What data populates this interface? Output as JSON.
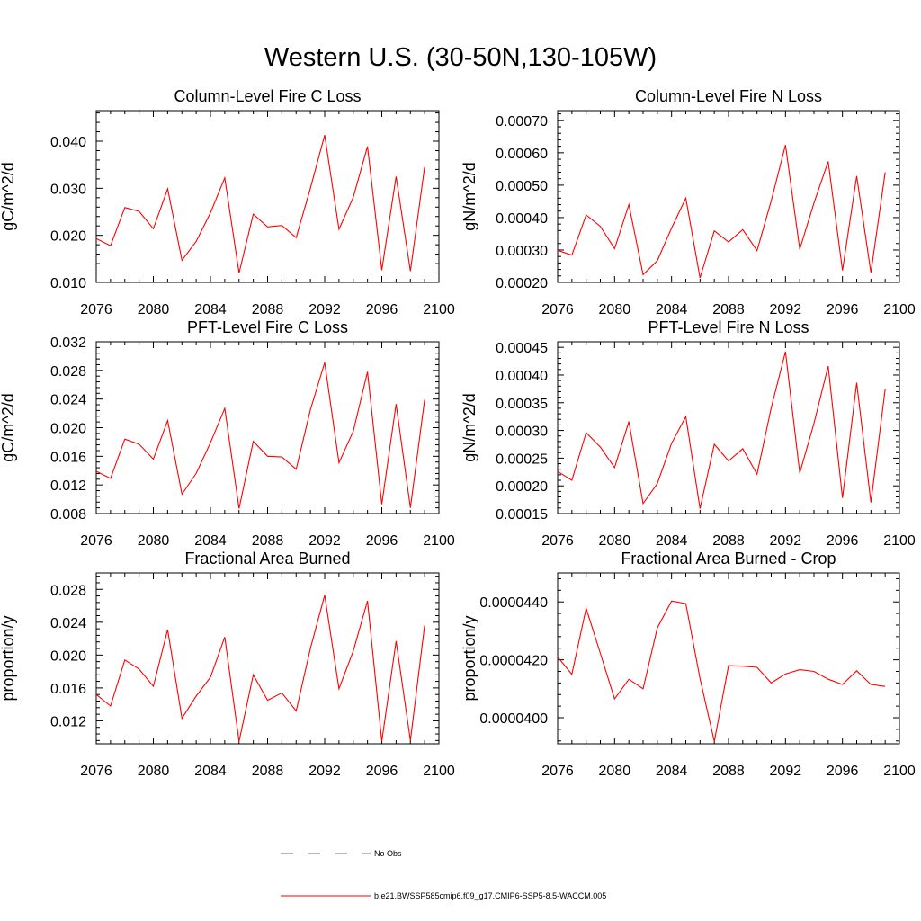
{
  "title": "Western U.S. (30-50N,130-105W)",
  "legend": [
    {
      "label": "No Obs",
      "color": "#6a6aa8",
      "style": "dashed"
    },
    {
      "label": "b.e21.BWSSP585cmip6.f09_g17.CMIP6-SSP5-8.5-WACCM.005",
      "color": "#ff0000",
      "style": "solid"
    }
  ],
  "chart_data": [
    {
      "type": "line",
      "title": "Column-Level Fire C Loss",
      "ylabel": "gC/m^2/d",
      "xlim": [
        2076,
        2100
      ],
      "ylim": [
        0.01,
        0.0465
      ],
      "xticks": [
        "2076",
        "2080",
        "2084",
        "2088",
        "2092",
        "2096",
        "2100"
      ],
      "yticks": [
        {
          "v": 0.01,
          "t": "0.010"
        },
        {
          "v": 0.02,
          "t": "0.020"
        },
        {
          "v": 0.03,
          "t": "0.030"
        },
        {
          "v": 0.04,
          "t": "0.040"
        }
      ],
      "x": [
        2076,
        2077,
        2078,
        2079,
        2080,
        2081,
        2082,
        2083,
        2084,
        2085,
        2086,
        2087,
        2088,
        2089,
        2090,
        2091,
        2092,
        2093,
        2094,
        2095,
        2096,
        2097,
        2098,
        2099
      ],
      "series": [
        {
          "color": "#ff0000",
          "values": [
            0.0193,
            0.0178,
            0.0259,
            0.0251,
            0.0214,
            0.0299,
            0.0147,
            0.0187,
            0.0248,
            0.0322,
            0.012,
            0.0245,
            0.0218,
            0.0221,
            0.0195,
            0.03,
            0.0413,
            0.0213,
            0.0281,
            0.0389,
            0.0126,
            0.0325,
            0.0124,
            0.0345
          ]
        }
      ]
    },
    {
      "type": "line",
      "title": "Column-Level Fire N Loss",
      "ylabel": "gN/m^2/d",
      "xlim": [
        2076,
        2100
      ],
      "ylim": [
        0.0002,
        0.00073
      ],
      "xticks": [
        "2076",
        "2080",
        "2084",
        "2088",
        "2092",
        "2096",
        "2100"
      ],
      "yticks": [
        {
          "v": 0.0002,
          "t": "0.00020"
        },
        {
          "v": 0.0003,
          "t": "0.00030"
        },
        {
          "v": 0.0004,
          "t": "0.00040"
        },
        {
          "v": 0.0005,
          "t": "0.00050"
        },
        {
          "v": 0.0006,
          "t": "0.00060"
        },
        {
          "v": 0.0007,
          "t": "0.00070"
        }
      ],
      "x": [
        2076,
        2077,
        2078,
        2079,
        2080,
        2081,
        2082,
        2083,
        2084,
        2085,
        2086,
        2087,
        2088,
        2089,
        2090,
        2091,
        2092,
        2093,
        2094,
        2095,
        2096,
        2097,
        2098,
        2099
      ],
      "series": [
        {
          "color": "#ff0000",
          "values": [
            0.000299,
            0.000284,
            0.000408,
            0.000373,
            0.000304,
            0.00044,
            0.000224,
            0.000267,
            0.000368,
            0.00046,
            0.000214,
            0.000359,
            0.000325,
            0.000363,
            0.000298,
            0.000452,
            0.000624,
            0.000302,
            0.000445,
            0.000573,
            0.000237,
            0.000528,
            0.00023,
            0.00054
          ]
        }
      ]
    },
    {
      "type": "line",
      "title": "PFT-Level Fire C Loss",
      "ylabel": "gC/m^2/d",
      "xlim": [
        2076,
        2100
      ],
      "ylim": [
        0.008,
        0.032
      ],
      "xticks": [
        "2076",
        "2080",
        "2084",
        "2088",
        "2092",
        "2096",
        "2100"
      ],
      "yticks": [
        {
          "v": 0.008,
          "t": "0.008"
        },
        {
          "v": 0.012,
          "t": "0.012"
        },
        {
          "v": 0.016,
          "t": "0.016"
        },
        {
          "v": 0.02,
          "t": "0.020"
        },
        {
          "v": 0.024,
          "t": "0.024"
        },
        {
          "v": 0.028,
          "t": "0.028"
        },
        {
          "v": 0.032,
          "t": "0.032"
        }
      ],
      "x": [
        2076,
        2077,
        2078,
        2079,
        2080,
        2081,
        2082,
        2083,
        2084,
        2085,
        2086,
        2087,
        2088,
        2089,
        2090,
        2091,
        2092,
        2093,
        2094,
        2095,
        2096,
        2097,
        2098,
        2099
      ],
      "series": [
        {
          "color": "#ff0000",
          "values": [
            0.0139,
            0.0129,
            0.0184,
            0.0177,
            0.0156,
            0.021,
            0.0107,
            0.0136,
            0.0179,
            0.0227,
            0.0087,
            0.0181,
            0.016,
            0.0159,
            0.0142,
            0.0225,
            0.0291,
            0.0151,
            0.0195,
            0.0278,
            0.0093,
            0.0233,
            0.0088,
            0.0239
          ]
        }
      ]
    },
    {
      "type": "line",
      "title": "PFT-Level Fire N Loss",
      "ylabel": "gN/m^2/d",
      "xlim": [
        2076,
        2100
      ],
      "ylim": [
        0.00015,
        0.00046
      ],
      "xticks": [
        "2076",
        "2080",
        "2084",
        "2088",
        "2092",
        "2096",
        "2100"
      ],
      "yticks": [
        {
          "v": 0.00015,
          "t": "0.00015"
        },
        {
          "v": 0.0002,
          "t": "0.00020"
        },
        {
          "v": 0.00025,
          "t": "0.00025"
        },
        {
          "v": 0.0003,
          "t": "0.00030"
        },
        {
          "v": 0.00035,
          "t": "0.00035"
        },
        {
          "v": 0.0004,
          "t": "0.00040"
        },
        {
          "v": 0.00045,
          "t": "0.00045"
        }
      ],
      "x": [
        2076,
        2077,
        2078,
        2079,
        2080,
        2081,
        2082,
        2083,
        2084,
        2085,
        2086,
        2087,
        2088,
        2089,
        2090,
        2091,
        2092,
        2093,
        2094,
        2095,
        2096,
        2097,
        2098,
        2099
      ],
      "series": [
        {
          "color": "#ff0000",
          "values": [
            0.000226,
            0.00021,
            0.000296,
            0.00027,
            0.000233,
            0.000316,
            0.000168,
            0.000204,
            0.000277,
            0.000325,
            0.000159,
            0.000275,
            0.000245,
            0.000267,
            0.000221,
            0.000341,
            0.000442,
            0.000223,
            0.000313,
            0.000416,
            0.000178,
            0.000386,
            0.00017,
            0.000375
          ]
        }
      ]
    },
    {
      "type": "line",
      "title": "Fractional Area Burned",
      "ylabel": "proportion/y",
      "xlim": [
        2076,
        2100
      ],
      "ylim": [
        0.0092,
        0.03
      ],
      "xticks": [
        "2076",
        "2080",
        "2084",
        "2088",
        "2092",
        "2096",
        "2100"
      ],
      "yticks": [
        {
          "v": 0.012,
          "t": "0.012"
        },
        {
          "v": 0.016,
          "t": "0.016"
        },
        {
          "v": 0.02,
          "t": "0.020"
        },
        {
          "v": 0.024,
          "t": "0.024"
        },
        {
          "v": 0.028,
          "t": "0.028"
        }
      ],
      "x": [
        2076,
        2077,
        2078,
        2079,
        2080,
        2081,
        2082,
        2083,
        2084,
        2085,
        2086,
        2087,
        2088,
        2089,
        2090,
        2091,
        2092,
        2093,
        2094,
        2095,
        2096,
        2097,
        2098,
        2099
      ],
      "series": [
        {
          "color": "#ff0000",
          "values": [
            0.0152,
            0.0138,
            0.0194,
            0.0183,
            0.0162,
            0.0231,
            0.0123,
            0.015,
            0.0173,
            0.0222,
            0.0095,
            0.0176,
            0.0145,
            0.0154,
            0.0132,
            0.0208,
            0.0273,
            0.0159,
            0.0205,
            0.0266,
            0.0095,
            0.0217,
            0.0096,
            0.0236
          ]
        }
      ]
    },
    {
      "type": "line",
      "title": "Fractional Area Burned - Crop",
      "ylabel": "proportion/y",
      "xlim": [
        2076,
        2100
      ],
      "ylim": [
        3.91e-05,
        4.5e-05
      ],
      "xticks": [
        "2076",
        "2080",
        "2084",
        "2088",
        "2092",
        "2096",
        "2100"
      ],
      "yticks": [
        {
          "v": 4e-05,
          "t": "0.0000400"
        },
        {
          "v": 4.2e-05,
          "t": "0.0000420"
        },
        {
          "v": 4.4e-05,
          "t": "0.0000440"
        }
      ],
      "x": [
        2076,
        2077,
        2078,
        2079,
        2080,
        2081,
        2082,
        2083,
        2084,
        2085,
        2086,
        2087,
        2088,
        2089,
        2090,
        2091,
        2092,
        2093,
        2094,
        2095,
        2096,
        2097,
        2098,
        2099
      ],
      "series": [
        {
          "color": "#ff0000",
          "values": [
            4.21e-05,
            4.15e-05,
            4.378e-05,
            4.222e-05,
            4.065e-05,
            4.133e-05,
            4.1e-05,
            4.31e-05,
            4.403e-05,
            4.394e-05,
            4.135e-05,
            3.918e-05,
            4.18e-05,
            4.178e-05,
            4.174e-05,
            4.12e-05,
            4.151e-05,
            4.166e-05,
            4.16e-05,
            4.133e-05,
            4.115e-05,
            4.162e-05,
            4.115e-05,
            4.108e-05
          ]
        }
      ]
    }
  ]
}
